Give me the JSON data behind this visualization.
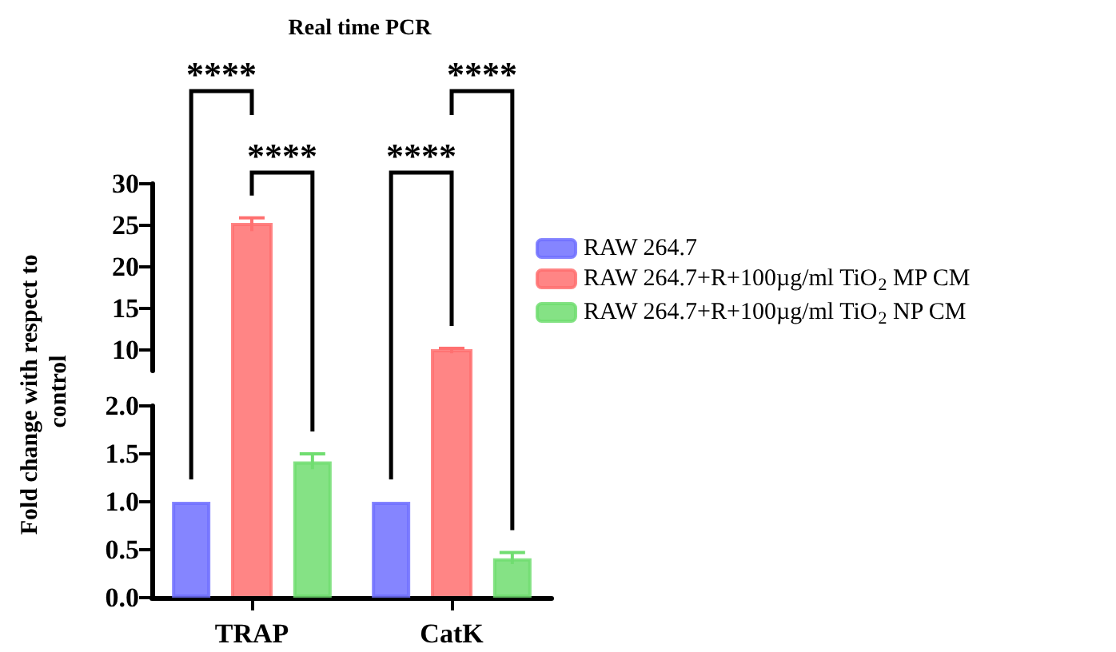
{
  "chart_data": [
    {
      "type": "bar",
      "title": "Real time PCR",
      "categories": [
        null,
        null
      ],
      "series": [
        {
          "color": "#ff7070",
          "values": [
            25.1,
            9.9
          ],
          "errors": [
            0.8,
            0.3
          ]
        }
      ],
      "ylim": [
        7.5,
        30
      ],
      "yticks": [
        10,
        15,
        20,
        25,
        30
      ],
      "tick_labels": "y",
      "annotations": [
        "****",
        "****",
        "****",
        "****"
      ]
    },
    {
      "type": "bar",
      "ylabel": "Fold change with respect to control",
      "categories": [
        "TRAP",
        "CatK"
      ],
      "series": [
        {
          "name": "RAW 264.7",
          "color": "#7070ff",
          "values": [
            1.0,
            1.0
          ]
        },
        {
          "name": "RAW 264.7+R+100µg/ml TiO$_{2}$ MP CM",
          "color": "#ff7070",
          "values": [
            null,
            null
          ]
        },
        {
          "name": "RAW 264.7+R+100µg/ml TiO$_{2}$ NP CM",
          "color": "#70dd70",
          "values": [
            1.42,
            0.41
          ],
          "errors": [
            0.08,
            0.06
          ]
        }
      ],
      "ylim": [
        0,
        2
      ],
      "yticks": [
        {
          "value": 0,
          "label": "0.0"
        },
        {
          "value": 0.5,
          "label": "0.5"
        },
        {
          "value": 1,
          "label": "1.0"
        },
        {
          "value": 1.5,
          "label": "1.5"
        },
        {
          "value": 2,
          "label": "2.0"
        }
      ],
      "legend": "right"
    }
  ]
}
